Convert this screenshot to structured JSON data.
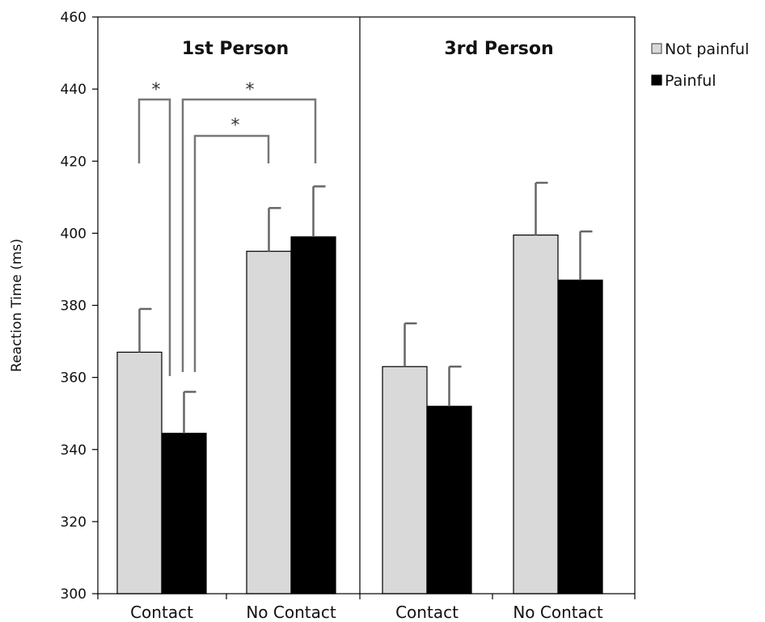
{
  "chart_data": {
    "type": "bar",
    "ylabel": "Reaction Time (ms)",
    "ylim": [
      300,
      460
    ],
    "yticks": [
      300,
      320,
      340,
      360,
      380,
      400,
      420,
      440,
      460
    ],
    "grid": false,
    "legend_position": "top-right",
    "panels": [
      {
        "title": "1st Person",
        "categories": [
          "Contact",
          "No Contact"
        ],
        "series": [
          {
            "name": "Not painful",
            "values": [
              367,
              395
            ],
            "errors": [
              12,
              12
            ],
            "color": "#d9d9d9"
          },
          {
            "name": "Painful",
            "values": [
              344.5,
              399
            ],
            "errors": [
              11.5,
              14
            ],
            "color": "#000000"
          }
        ],
        "significance_marker": "*"
      },
      {
        "title": "3rd Person",
        "categories": [
          "Contact",
          "No Contact"
        ],
        "series": [
          {
            "name": "Not painful",
            "values": [
              363,
              399.5
            ],
            "errors": [
              12,
              14.5
            ],
            "color": "#d9d9d9"
          },
          {
            "name": "Painful",
            "values": [
              352,
              387
            ],
            "errors": [
              11,
              13.5
            ],
            "color": "#000000"
          }
        ]
      }
    ]
  }
}
